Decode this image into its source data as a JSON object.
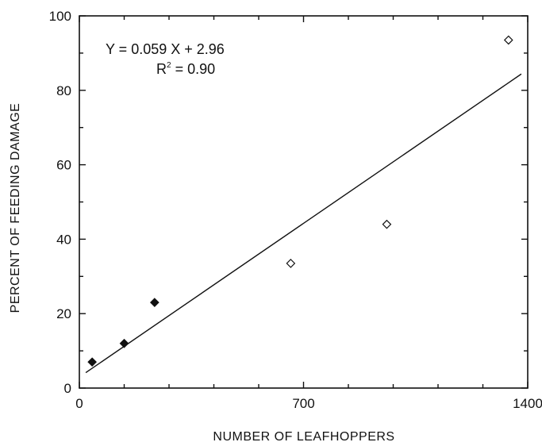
{
  "chart_data": {
    "type": "scatter",
    "title": "",
    "xlabel": "NUMBER OF LEAFHOPPERS",
    "ylabel": "PERCENT OF FEEDING DAMAGE",
    "xlim": [
      0,
      1400
    ],
    "ylim": [
      0,
      100
    ],
    "x_ticks": [
      "0",
      "700",
      "1400"
    ],
    "y_ticks": [
      "0",
      "20",
      "40",
      "60",
      "80",
      "100"
    ],
    "grid": false,
    "series": [
      {
        "marker": "filled-diamond",
        "points": [
          {
            "x": 40,
            "y": 7
          },
          {
            "x": 140,
            "y": 12
          },
          {
            "x": 235,
            "y": 23
          }
        ]
      },
      {
        "marker": "open-diamond",
        "points": [
          {
            "x": 660,
            "y": 33.5
          },
          {
            "x": 960,
            "y": 44
          },
          {
            "x": 1340,
            "y": 93.5
          }
        ]
      }
    ],
    "regression": {
      "slope": 0.059,
      "intercept": 2.96,
      "x_range": [
        20,
        1380
      ]
    },
    "annotations": {
      "equation": "Y = 0.059 X  +  2.96",
      "r_squared_prefix": "R",
      "r_squared_sup": "2",
      "r_squared_suffix": " = 0.90"
    },
    "colors": {
      "ink": "#111111",
      "background": "#ffffff"
    }
  }
}
